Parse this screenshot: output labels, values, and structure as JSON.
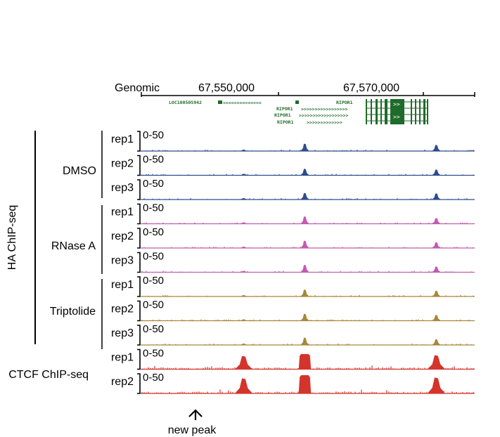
{
  "genome_axis": {
    "label": "Genomic",
    "ticks": [
      {
        "label": "67,550,000",
        "pos": 67550000
      },
      {
        "label": "67,570,000",
        "pos": 67570000
      }
    ],
    "range": [
      67530000,
      67577000
    ]
  },
  "genes": {
    "loc": "LOC100505942",
    "ripor_isoforms": [
      "RIPOR1",
      "RIPOR1",
      "RIPOR1",
      "RIPOR1"
    ],
    "color": "#1f6b2a"
  },
  "groups": {
    "ha_label": "HA ChIP-seq",
    "ctcf_label": "CTCF ChIP-seq",
    "treatments": [
      "DMSO",
      "RNase A",
      "Triptolide"
    ]
  },
  "annotation": {
    "new_peak": "new peak"
  },
  "chart_data": {
    "type": "area",
    "x_unit": "genomic position (bp)",
    "xlim": [
      67530000,
      67577000
    ],
    "ylim": [
      0,
      50
    ],
    "scale_label": "0-50",
    "tracks": [
      {
        "group": "DMSO",
        "rep": "rep1",
        "color": "#2e4c8c",
        "peaks": [
          {
            "x": 67544500,
            "y": 3
          },
          {
            "x": 67553100,
            "y": 18
          },
          {
            "x": 67571600,
            "y": 15
          }
        ]
      },
      {
        "group": "DMSO",
        "rep": "rep2",
        "color": "#2e4c8c",
        "peaks": [
          {
            "x": 67544500,
            "y": 3
          },
          {
            "x": 67553100,
            "y": 16
          },
          {
            "x": 67571600,
            "y": 14
          }
        ]
      },
      {
        "group": "DMSO",
        "rep": "rep3",
        "color": "#2e4c8c",
        "peaks": [
          {
            "x": 67544500,
            "y": 3
          },
          {
            "x": 67553100,
            "y": 16
          },
          {
            "x": 67571600,
            "y": 15
          }
        ]
      },
      {
        "group": "RNase A",
        "rep": "rep1",
        "color": "#c45ab0",
        "peaks": [
          {
            "x": 67544500,
            "y": 3
          },
          {
            "x": 67553100,
            "y": 18
          },
          {
            "x": 67571600,
            "y": 14
          }
        ]
      },
      {
        "group": "RNase A",
        "rep": "rep2",
        "color": "#c45ab0",
        "peaks": [
          {
            "x": 67544500,
            "y": 3
          },
          {
            "x": 67553100,
            "y": 18
          },
          {
            "x": 67571600,
            "y": 14
          }
        ]
      },
      {
        "group": "RNase A",
        "rep": "rep3",
        "color": "#c45ab0",
        "peaks": [
          {
            "x": 67544500,
            "y": 3
          },
          {
            "x": 67553100,
            "y": 18
          },
          {
            "x": 67571600,
            "y": 14
          }
        ]
      },
      {
        "group": "Triptolide",
        "rep": "rep1",
        "color": "#a8873a",
        "peaks": [
          {
            "x": 67544500,
            "y": 3
          },
          {
            "x": 67553100,
            "y": 17
          },
          {
            "x": 67571600,
            "y": 14
          }
        ]
      },
      {
        "group": "Triptolide",
        "rep": "rep2",
        "color": "#a8873a",
        "peaks": [
          {
            "x": 67544500,
            "y": 3
          },
          {
            "x": 67553100,
            "y": 17
          },
          {
            "x": 67571600,
            "y": 14
          }
        ]
      },
      {
        "group": "Triptolide",
        "rep": "rep3",
        "color": "#a8873a",
        "peaks": [
          {
            "x": 67544500,
            "y": 3
          },
          {
            "x": 67553100,
            "y": 18
          },
          {
            "x": 67571600,
            "y": 14
          }
        ]
      },
      {
        "group": "CTCF ChIP-seq",
        "rep": "rep1",
        "color": "#d4342c",
        "peaks": [
          {
            "x": 67544500,
            "y": 33
          },
          {
            "x": 67553100,
            "y": 38
          },
          {
            "x": 67571600,
            "y": 35
          }
        ]
      },
      {
        "group": "CTCF ChIP-seq",
        "rep": "rep2",
        "color": "#d4342c",
        "peaks": [
          {
            "x": 67544500,
            "y": 38
          },
          {
            "x": 67553100,
            "y": 46
          },
          {
            "x": 67571600,
            "y": 40
          }
        ]
      }
    ]
  }
}
